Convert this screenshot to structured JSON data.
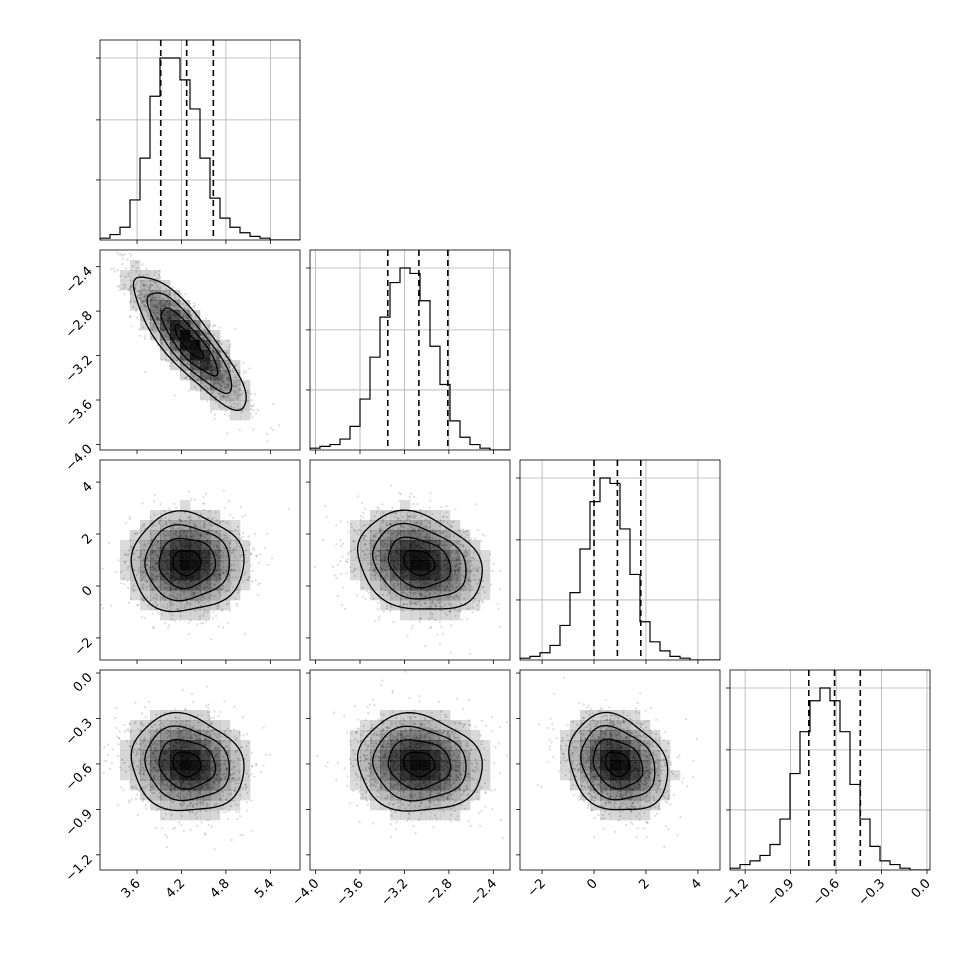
{
  "chart_data": {
    "type": "corner",
    "grid": true,
    "parameters": [
      {
        "range": [
          3.1,
          5.8
        ],
        "ticks": [
          3.6,
          4.2,
          4.8,
          5.4
        ],
        "tick_labels": [
          "3.6",
          "4.2",
          "4.8",
          "5.4"
        ],
        "quantiles": [
          3.92,
          4.27,
          4.63
        ]
      },
      {
        "range": [
          -4.05,
          -2.25
        ],
        "ticks": [
          -4.0,
          -3.6,
          -3.2,
          -2.8,
          -2.4
        ],
        "tick_labels": [
          "−4.0",
          "−3.6",
          "−3.2",
          "−2.8",
          "−2.4"
        ],
        "quantiles": [
          -3.35,
          -3.07,
          -2.81
        ]
      },
      {
        "range": [
          -2.85,
          4.85
        ],
        "ticks": [
          -2,
          0,
          2,
          4
        ],
        "tick_labels": [
          "−2",
          "0",
          "2",
          "4"
        ],
        "quantiles": [
          0.0,
          0.9,
          1.8
        ]
      },
      {
        "range": [
          -1.3,
          0.02
        ],
        "ticks": [
          -1.2,
          -0.9,
          -0.6,
          -0.3,
          0.0
        ],
        "tick_labels": [
          "−1.2",
          "−0.9",
          "−0.6",
          "−0.3",
          "0.0"
        ],
        "quantiles": [
          -0.78,
          -0.61,
          -0.44
        ]
      }
    ],
    "histograms": [
      {
        "bin_start": 3.1,
        "bin_width": 0.135,
        "counts": [
          1,
          3,
          7,
          22,
          45,
          79,
          100,
          100,
          88,
          72,
          45,
          23,
          12,
          7,
          4,
          2,
          1,
          0,
          0,
          0
        ]
      },
      {
        "bin_start": -4.05,
        "bin_width": 0.09,
        "counts": [
          1,
          2,
          3,
          6,
          13,
          28,
          51,
          73,
          92,
          100,
          97,
          82,
          57,
          36,
          16,
          7,
          3,
          1,
          0,
          0
        ]
      },
      {
        "bin_start": -2.85,
        "bin_width": 0.385,
        "counts": [
          1,
          2,
          4,
          8,
          19,
          37,
          61,
          87,
          100,
          97,
          72,
          47,
          21,
          10,
          5,
          2,
          1,
          0,
          0,
          0
        ]
      },
      {
        "bin_start": -1.3,
        "bin_width": 0.066,
        "counts": [
          1,
          3,
          5,
          8,
          14,
          28,
          53,
          76,
          93,
          100,
          93,
          76,
          47,
          28,
          13,
          5,
          3,
          1,
          0,
          0
        ]
      }
    ],
    "pairs": [
      {
        "x": 0,
        "y": 1,
        "center": [
          4.3,
          -3.08
        ],
        "sd": [
          0.38,
          0.3
        ],
        "corr": -0.85
      },
      {
        "x": 0,
        "y": 2,
        "center": [
          4.27,
          0.9
        ],
        "sd": [
          0.38,
          0.95
        ],
        "corr": 0.0
      },
      {
        "x": 1,
        "y": 2,
        "center": [
          -3.07,
          0.9
        ],
        "sd": [
          0.28,
          0.95
        ],
        "corr": -0.22
      },
      {
        "x": 0,
        "y": 3,
        "center": [
          4.27,
          -0.6
        ],
        "sd": [
          0.38,
          0.16
        ],
        "corr": -0.12
      },
      {
        "x": 1,
        "y": 3,
        "center": [
          -3.07,
          -0.6
        ],
        "sd": [
          0.28,
          0.16
        ],
        "corr": -0.08
      },
      {
        "x": 2,
        "y": 3,
        "center": [
          0.9,
          -0.6
        ],
        "sd": [
          0.95,
          0.16
        ],
        "corr": -0.2
      }
    ]
  }
}
